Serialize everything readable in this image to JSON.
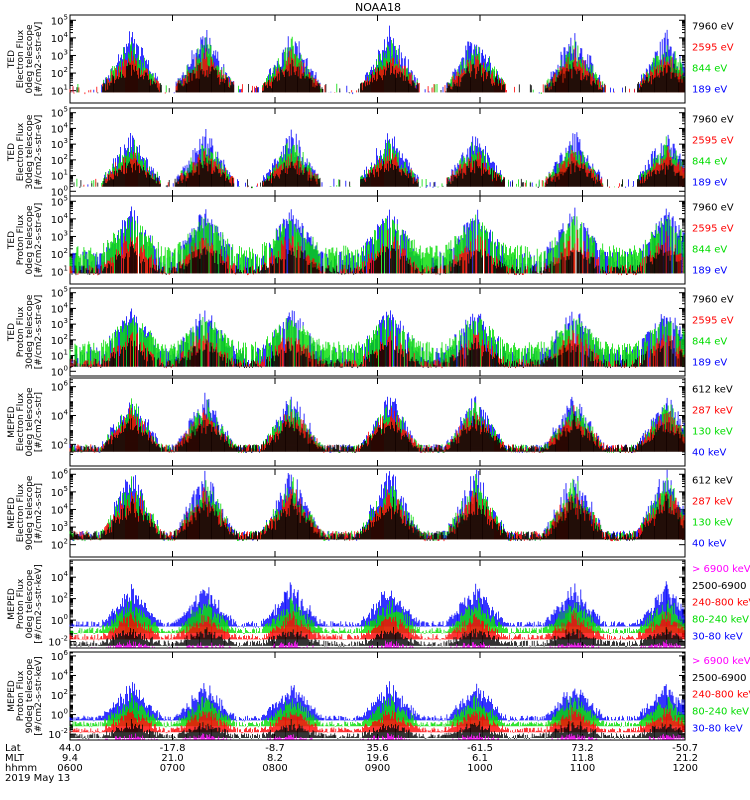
{
  "chart_data": {
    "type": "line",
    "title": "NOAA18",
    "x_axis": {
      "rows": [
        {
          "name": "Lat",
          "values": [
            "44.0",
            "-17.8",
            "-8.7",
            "35.6",
            "-61.5",
            "73.2",
            "-50.7"
          ]
        },
        {
          "name": "MLT",
          "values": [
            "9.4",
            "21.0",
            "8.2",
            "19.6",
            "6.1",
            "11.8",
            "21.2"
          ]
        },
        {
          "name": "hhmm",
          "values": [
            "0600",
            "0700",
            "0800",
            "0900",
            "1000",
            "1100",
            "1200"
          ]
        }
      ],
      "date": "2019 May 13",
      "range_hours": [
        6,
        12
      ]
    },
    "panels": [
      {
        "ylabel": [
          "TED",
          "Electron Flux",
          "0deg telescope",
          "[#/cm2-s-str-eV]"
        ],
        "ytick_exponents": [
          1,
          2,
          3,
          4,
          5
        ],
        "ylim_log10": [
          0.3,
          5.3
        ],
        "legend": [
          {
            "label": "7960 eV",
            "color": "#000000"
          },
          {
            "label": "2595 eV",
            "color": "#ff0000"
          },
          {
            "label": "844 eV",
            "color": "#00dd00"
          },
          {
            "label": "189 eV",
            "color": "#0000ff"
          }
        ]
      },
      {
        "ylabel": [
          "TED",
          "Electron Flux",
          "30deg telescope",
          "[#/cm2-s-str-eV]"
        ],
        "ytick_exponents": [
          0,
          1,
          2,
          3,
          4,
          5
        ],
        "ylim_log10": [
          -0.3,
          5.3
        ],
        "legend": [
          {
            "label": "7960 eV",
            "color": "#000000"
          },
          {
            "label": "2595 eV",
            "color": "#ff0000"
          },
          {
            "label": "844 eV",
            "color": "#00dd00"
          },
          {
            "label": "189 eV",
            "color": "#0000ff"
          }
        ]
      },
      {
        "ylabel": [
          "TED",
          "Proton Flux",
          "0deg telescope",
          "[#/cm2-s-str-eV]"
        ],
        "ytick_exponents": [
          1,
          2,
          3,
          4,
          5
        ],
        "ylim_log10": [
          0.3,
          5.3
        ],
        "legend": [
          {
            "label": "7960 eV",
            "color": "#000000"
          },
          {
            "label": "2595 eV",
            "color": "#ff0000"
          },
          {
            "label": "844 eV",
            "color": "#00dd00"
          },
          {
            "label": "189 eV",
            "color": "#0000ff"
          }
        ]
      },
      {
        "ylabel": [
          "TED",
          "Proton Flux",
          "30deg telescope",
          "[#/cm2-s-str-eV]"
        ],
        "ytick_exponents": [
          0,
          1,
          2,
          3,
          4,
          5
        ],
        "ylim_log10": [
          -0.3,
          5.3
        ],
        "legend": [
          {
            "label": "7960 eV",
            "color": "#000000"
          },
          {
            "label": "2595 eV",
            "color": "#ff0000"
          },
          {
            "label": "844 eV",
            "color": "#00dd00"
          },
          {
            "label": "189 eV",
            "color": "#0000ff"
          }
        ]
      },
      {
        "ylabel": [
          "MEPED",
          "Electron Flux",
          "0deg telescope",
          "[#/cm2-s-str]"
        ],
        "ytick_exponents": [
          2,
          4,
          6
        ],
        "ylim_log10": [
          0.5,
          6.6
        ],
        "legend": [
          {
            "label": "612 keV",
            "color": "#000000"
          },
          {
            "label": "287 keV",
            "color": "#ff0000"
          },
          {
            "label": "130 keV",
            "color": "#00dd00"
          },
          {
            "label": "40 keV",
            "color": "#0000ff"
          }
        ]
      },
      {
        "ylabel": [
          "MEPED",
          "Electron Flux",
          "90deg telescope",
          "[#/cm2-s-str]"
        ],
        "ytick_exponents": [
          2,
          3,
          4,
          5,
          6
        ],
        "ylim_log10": [
          1.3,
          6.3
        ],
        "legend": [
          {
            "label": "612 keV",
            "color": "#000000"
          },
          {
            "label": "287 keV",
            "color": "#ff0000"
          },
          {
            "label": "130 keV",
            "color": "#00dd00"
          },
          {
            "label": "40 keV",
            "color": "#0000ff"
          }
        ]
      },
      {
        "ylabel": [
          "MEPED",
          "Proton Flux",
          "0deg telescope",
          "[#/cm2-s-str-keV]"
        ],
        "ytick_exponents": [
          -2,
          0,
          2,
          4
        ],
        "ylim_log10": [
          -2.6,
          5.6
        ],
        "legend": [
          {
            "label": "> 6900 keV",
            "color": "#ff00ff"
          },
          {
            "label": "2500-6900",
            "color": "#000000"
          },
          {
            "label": "240-800 keV",
            "color": "#ff0000"
          },
          {
            "label": "80-240 keV",
            "color": "#00dd00"
          },
          {
            "label": "30-80 keV",
            "color": "#0000ff"
          }
        ]
      },
      {
        "ylabel": [
          "MEPED",
          "Proton Flux",
          "90deg telescope",
          "[#/cm2-s-str-keV]"
        ],
        "ytick_exponents": [
          -2,
          0,
          2,
          4,
          6
        ],
        "ylim_log10": [
          -2.6,
          6.4
        ],
        "legend": [
          {
            "label": "> 6900 keV",
            "color": "#ff00ff"
          },
          {
            "label": "2500-6900",
            "color": "#000000"
          },
          {
            "label": "240-800 keV",
            "color": "#ff0000"
          },
          {
            "label": "80-240 keV",
            "color": "#00dd00"
          },
          {
            "label": "30-80 keV",
            "color": "#0000ff"
          }
        ]
      }
    ]
  }
}
